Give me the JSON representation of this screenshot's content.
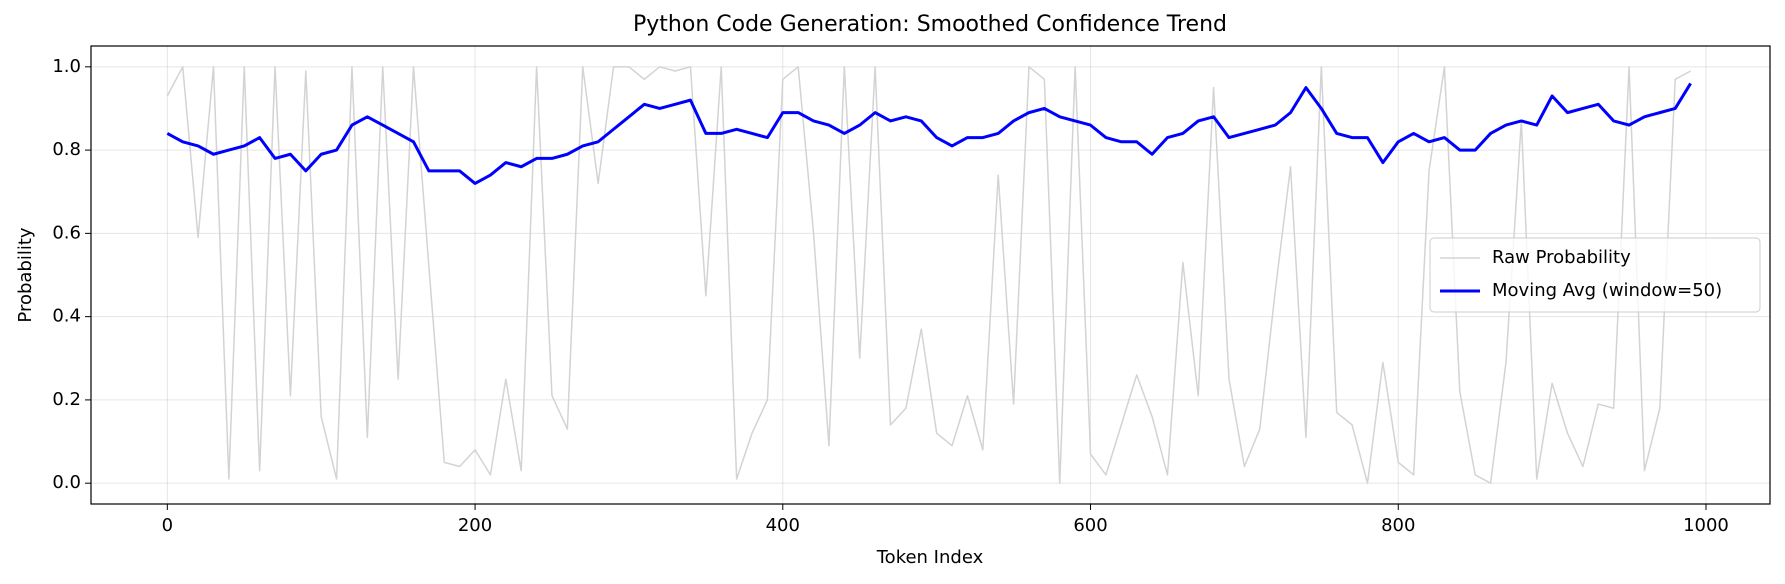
{
  "chart_data": {
    "type": "line",
    "title": "Python Code Generation: Smoothed Confidence Trend",
    "xlabel": "Token Index",
    "ylabel": "Probability",
    "xlim": [
      -49.6,
      1041.6
    ],
    "ylim": [
      -0.05,
      1.05
    ],
    "xticks": [
      0,
      200,
      400,
      600,
      800,
      1000
    ],
    "yticks": [
      {
        "value": 0,
        "label": "0.0"
      },
      0.2,
      0.4,
      0.6,
      0.8,
      {
        "value": 1,
        "label": "1.0"
      }
    ],
    "grid": true,
    "legend": "center right",
    "series": [
      {
        "name": "Raw Probability",
        "color": "#d3d3d3",
        "width": 1.5,
        "x": [
          0,
          10,
          20,
          30,
          40,
          50,
          60,
          70,
          80,
          90,
          100,
          110,
          120,
          130,
          140,
          150,
          160,
          170,
          180,
          190,
          200,
          210,
          220,
          230,
          240,
          250,
          260,
          270,
          280,
          290,
          300,
          310,
          320,
          330,
          340,
          350,
          360,
          370,
          380,
          390,
          400,
          410,
          420,
          430,
          440,
          450,
          460,
          470,
          480,
          490,
          500,
          510,
          520,
          530,
          540,
          550,
          560,
          570,
          580,
          590,
          600,
          610,
          620,
          630,
          640,
          650,
          660,
          670,
          680,
          690,
          700,
          710,
          720,
          730,
          740,
          750,
          760,
          770,
          780,
          790,
          800,
          810,
          820,
          830,
          840,
          850,
          860,
          870,
          880,
          890,
          900,
          910,
          920,
          930,
          940,
          950,
          960,
          970,
          980,
          990
        ],
        "values": [
          0.93,
          1.0,
          0.59,
          1.0,
          0.01,
          1.0,
          0.03,
          1.0,
          0.21,
          0.99,
          0.16,
          0.01,
          1.0,
          0.11,
          1.0,
          0.25,
          1.0,
          0.52,
          0.05,
          0.04,
          0.08,
          0.02,
          0.25,
          0.03,
          1.0,
          0.21,
          0.13,
          1.0,
          0.72,
          1.0,
          1.0,
          0.97,
          1.0,
          0.99,
          1.0,
          0.45,
          1.0,
          0.01,
          0.12,
          0.2,
          0.97,
          1.0,
          0.6,
          0.09,
          1.0,
          0.3,
          1.0,
          0.14,
          0.18,
          0.37,
          0.12,
          0.09,
          0.21,
          0.08,
          0.74,
          0.19,
          1.0,
          0.97,
          0.0,
          1.0,
          0.07,
          0.02,
          0.14,
          0.26,
          0.16,
          0.02,
          0.53,
          0.21,
          0.95,
          0.25,
          0.04,
          0.13,
          0.46,
          0.76,
          0.11,
          1.0,
          0.17,
          0.14,
          0.0,
          0.29,
          0.05,
          0.02,
          0.75,
          1.0,
          0.22,
          0.02,
          0.0,
          0.29,
          0.87,
          0.01,
          0.24,
          0.12,
          0.04,
          0.19,
          0.18,
          1.0,
          0.03,
          0.18,
          0.97,
          0.99
        ]
      },
      {
        "name": "Moving Avg (window=50)",
        "color": "#0000ff",
        "width": 3,
        "x": [
          0,
          10,
          20,
          30,
          40,
          50,
          60,
          70,
          80,
          90,
          100,
          110,
          120,
          130,
          140,
          150,
          160,
          170,
          180,
          190,
          200,
          210,
          220,
          230,
          240,
          250,
          260,
          270,
          280,
          290,
          300,
          310,
          320,
          330,
          340,
          350,
          360,
          370,
          380,
          390,
          400,
          410,
          420,
          430,
          440,
          450,
          460,
          470,
          480,
          490,
          500,
          510,
          520,
          530,
          540,
          550,
          560,
          570,
          580,
          590,
          600,
          610,
          620,
          630,
          640,
          650,
          660,
          670,
          680,
          690,
          700,
          710,
          720,
          730,
          740,
          750,
          760,
          770,
          780,
          790,
          800,
          810,
          820,
          830,
          840,
          850,
          860,
          870,
          880,
          890,
          900,
          910,
          920,
          930,
          940,
          950,
          960,
          970,
          980,
          990
        ],
        "values": [
          0.84,
          0.82,
          0.81,
          0.79,
          0.8,
          0.81,
          0.83,
          0.78,
          0.79,
          0.75,
          0.79,
          0.8,
          0.86,
          0.88,
          0.86,
          0.84,
          0.82,
          0.75,
          0.75,
          0.75,
          0.72,
          0.74,
          0.77,
          0.76,
          0.78,
          0.78,
          0.79,
          0.81,
          0.82,
          0.85,
          0.88,
          0.91,
          0.9,
          0.91,
          0.92,
          0.84,
          0.84,
          0.85,
          0.84,
          0.83,
          0.89,
          0.89,
          0.87,
          0.86,
          0.84,
          0.86,
          0.89,
          0.87,
          0.88,
          0.87,
          0.83,
          0.81,
          0.83,
          0.83,
          0.84,
          0.87,
          0.89,
          0.9,
          0.88,
          0.87,
          0.86,
          0.83,
          0.82,
          0.82,
          0.79,
          0.83,
          0.84,
          0.87,
          0.88,
          0.83,
          0.84,
          0.85,
          0.86,
          0.89,
          0.95,
          0.9,
          0.84,
          0.83,
          0.83,
          0.77,
          0.82,
          0.84,
          0.82,
          0.83,
          0.8,
          0.8,
          0.84,
          0.86,
          0.87,
          0.86,
          0.93,
          0.89,
          0.9,
          0.91,
          0.87,
          0.86,
          0.88,
          0.89,
          0.9,
          0.96
        ]
      }
    ]
  }
}
